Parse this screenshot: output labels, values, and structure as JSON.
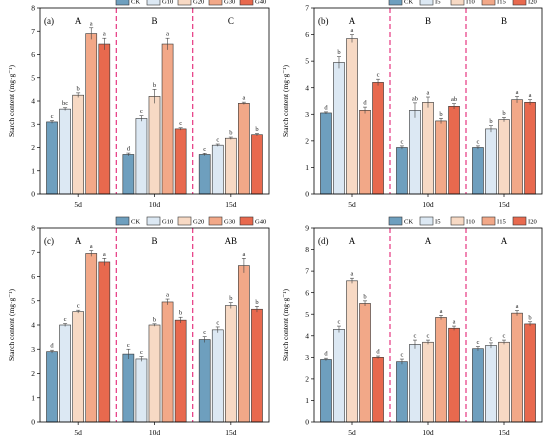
{
  "colors": [
    "#6E9FBE",
    "#DCE8F3",
    "#F7D9C4",
    "#F2A888",
    "#E8694E"
  ],
  "divider_color": "#E8458A",
  "chart_data": [
    {
      "type": "bar",
      "panel_label": "(a)",
      "ylabel": "Starch content (mg·g⁻¹)",
      "ylim": [
        0,
        8
      ],
      "yticks": [
        0,
        1,
        2,
        3,
        4,
        5,
        6,
        7,
        8
      ],
      "categories": [
        "5d",
        "10d",
        "15d"
      ],
      "group_letters": [
        "A",
        "B",
        "C"
      ],
      "legend_position": "top",
      "series": [
        {
          "name": "CK",
          "values": [
            3.1,
            1.7,
            1.7
          ],
          "errors": [
            0.06,
            0.06,
            0.05
          ],
          "sig": [
            "c",
            "d",
            "c"
          ]
        },
        {
          "name": "G10",
          "values": [
            3.65,
            3.25,
            2.1
          ],
          "errors": [
            0.06,
            0.12,
            0.05
          ],
          "sig": [
            "bc",
            "c",
            "c"
          ]
        },
        {
          "name": "G20",
          "values": [
            4.25,
            4.2,
            2.4
          ],
          "errors": [
            0.1,
            0.3,
            0.05
          ],
          "sig": [
            "b",
            "b",
            "b"
          ]
        },
        {
          "name": "G30",
          "values": [
            6.9,
            6.45,
            3.9
          ],
          "errors": [
            0.25,
            0.25,
            0.05
          ],
          "sig": [
            "a",
            "a",
            "a"
          ]
        },
        {
          "name": "G40",
          "values": [
            6.45,
            2.8,
            2.55
          ],
          "errors": [
            0.25,
            0.05,
            0.05
          ],
          "sig": [
            "a",
            "c",
            "b"
          ]
        }
      ]
    },
    {
      "type": "bar",
      "panel_label": "(b)",
      "ylabel": "Starch content (mg·g⁻¹)",
      "ylim": [
        0,
        7
      ],
      "yticks": [
        0,
        1,
        2,
        3,
        4,
        5,
        6,
        7
      ],
      "categories": [
        "5d",
        "10d",
        "15d"
      ],
      "group_letters": [
        "A",
        "B",
        "B"
      ],
      "legend_position": "top",
      "series": [
        {
          "name": "CK",
          "values": [
            3.05,
            1.75,
            1.75
          ],
          "errors": [
            0.04,
            0.06,
            0.06
          ],
          "sig": [
            "d",
            "c",
            "c"
          ]
        },
        {
          "name": "I5",
          "values": [
            4.95,
            3.15,
            2.45
          ],
          "errors": [
            0.22,
            0.28,
            0.12
          ],
          "sig": [
            "b",
            "ab",
            "b"
          ]
        },
        {
          "name": "I10",
          "values": [
            5.85,
            3.45,
            2.8
          ],
          "errors": [
            0.15,
            0.2,
            0.08
          ],
          "sig": [
            "a",
            "a",
            "b"
          ]
        },
        {
          "name": "I15",
          "values": [
            3.15,
            2.75,
            3.55
          ],
          "errors": [
            0.12,
            0.1,
            0.12
          ],
          "sig": [
            "d",
            "b",
            "a"
          ]
        },
        {
          "name": "I20",
          "values": [
            4.2,
            3.3,
            3.45
          ],
          "errors": [
            0.12,
            0.1,
            0.1
          ],
          "sig": [
            "c",
            "ab",
            "a"
          ]
        }
      ]
    },
    {
      "type": "bar",
      "panel_label": "(c)",
      "ylabel": "Starch content (mg·g⁻¹)",
      "ylim": [
        0,
        8
      ],
      "yticks": [
        0,
        1,
        2,
        3,
        4,
        5,
        6,
        7,
        8
      ],
      "categories": [
        "5d",
        "10d",
        "15d"
      ],
      "group_letters": [
        "A",
        "B",
        "AB"
      ],
      "legend_position": "top",
      "series": [
        {
          "name": "CK",
          "values": [
            2.9,
            2.8,
            3.4
          ],
          "errors": [
            0.06,
            0.2,
            0.12
          ],
          "sig": [
            "d",
            "c",
            "c"
          ]
        },
        {
          "name": "G10",
          "values": [
            4.0,
            2.6,
            3.8
          ],
          "errors": [
            0.06,
            0.1,
            0.12
          ],
          "sig": [
            "c",
            "c",
            "c"
          ]
        },
        {
          "name": "G20",
          "values": [
            4.55,
            4.0,
            4.8
          ],
          "errors": [
            0.06,
            0.05,
            0.12
          ],
          "sig": [
            "c",
            "b",
            "b"
          ]
        },
        {
          "name": "G30",
          "values": [
            6.95,
            4.95,
            6.45
          ],
          "errors": [
            0.12,
            0.12,
            0.3
          ],
          "sig": [
            "a",
            "a",
            "a"
          ]
        },
        {
          "name": "G40",
          "values": [
            6.6,
            4.2,
            4.65
          ],
          "errors": [
            0.15,
            0.12,
            0.12
          ],
          "sig": [
            "a",
            "b",
            "b"
          ]
        }
      ]
    },
    {
      "type": "bar",
      "panel_label": "(d)",
      "ylabel": "Starch content (mg·g⁻¹)",
      "ylim": [
        0,
        9
      ],
      "yticks": [
        0,
        1,
        2,
        3,
        4,
        5,
        6,
        7,
        8,
        9
      ],
      "categories": [
        "5d",
        "10d",
        "15d"
      ],
      "group_letters": [
        "A",
        "A",
        "A"
      ],
      "legend_position": "top",
      "series": [
        {
          "name": "CK",
          "values": [
            2.9,
            2.8,
            3.4
          ],
          "errors": [
            0.06,
            0.12,
            0.1
          ],
          "sig": [
            "d",
            "c",
            "c"
          ]
        },
        {
          "name": "I5",
          "values": [
            4.3,
            3.6,
            3.55
          ],
          "errors": [
            0.15,
            0.2,
            0.12
          ],
          "sig": [
            "c",
            "c",
            "c"
          ]
        },
        {
          "name": "I10",
          "values": [
            6.55,
            3.7,
            3.7
          ],
          "errors": [
            0.12,
            0.1,
            0.1
          ],
          "sig": [
            "a",
            "c",
            "c"
          ]
        },
        {
          "name": "I15",
          "values": [
            5.5,
            4.85,
            5.05
          ],
          "errors": [
            0.12,
            0.1,
            0.12
          ],
          "sig": [
            "b",
            "a",
            "a"
          ]
        },
        {
          "name": "I20",
          "values": [
            3.0,
            4.35,
            4.55
          ],
          "errors": [
            0.06,
            0.1,
            0.1
          ],
          "sig": [
            "d",
            "a",
            "b"
          ]
        }
      ]
    }
  ]
}
